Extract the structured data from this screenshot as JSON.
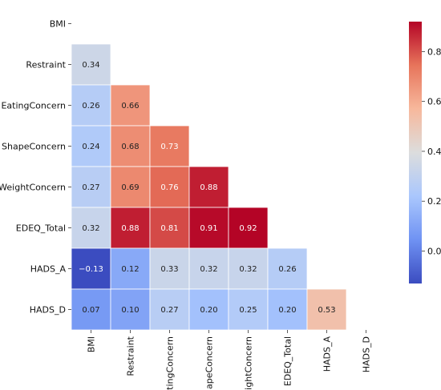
{
  "chart_data": {
    "type": "heatmap",
    "variables": [
      "BMI",
      "Restraint",
      "EatingConcern",
      "ShapeConcern",
      "WeightConcern",
      "EDEQ_Total",
      "HADS_A",
      "HADS_D"
    ],
    "rows": [
      [
        null,
        null,
        null,
        null,
        null,
        null,
        null,
        null
      ],
      [
        0.34,
        null,
        null,
        null,
        null,
        null,
        null,
        null
      ],
      [
        0.26,
        0.66,
        null,
        null,
        null,
        null,
        null,
        null
      ],
      [
        0.24,
        0.68,
        0.73,
        null,
        null,
        null,
        null,
        null
      ],
      [
        0.27,
        0.69,
        0.76,
        0.88,
        null,
        null,
        null,
        null
      ],
      [
        0.32,
        0.88,
        0.81,
        0.91,
        0.92,
        null,
        null,
        null
      ],
      [
        -0.13,
        0.12,
        0.33,
        0.32,
        0.32,
        0.26,
        null,
        null
      ],
      [
        0.07,
        0.1,
        0.27,
        0.2,
        0.25,
        0.2,
        0.53,
        null
      ]
    ],
    "cell_labels": [
      [
        "",
        "",
        "",
        "",
        "",
        "",
        "",
        ""
      ],
      [
        "0.34",
        "",
        "",
        "",
        "",
        "",
        "",
        ""
      ],
      [
        "0.26",
        "0.66",
        "",
        "",
        "",
        "",
        "",
        ""
      ],
      [
        "0.24",
        "0.68",
        "0.73",
        "",
        "",
        "",
        "",
        ""
      ],
      [
        "0.27",
        "0.69",
        "0.76",
        "0.88",
        "",
        "",
        "",
        ""
      ],
      [
        "0.32",
        "0.88",
        "0.81",
        "0.91",
        "0.92",
        "",
        "",
        ""
      ],
      [
        "−0.13",
        "0.12",
        "0.33",
        "0.32",
        "0.32",
        "0.26",
        "",
        ""
      ],
      [
        "0.07",
        "0.10",
        "0.27",
        "0.20",
        "0.25",
        "0.20",
        "0.53",
        ""
      ]
    ],
    "colorbar": {
      "min": -0.13,
      "max": 0.92,
      "ticks": [
        0.0,
        0.2,
        0.4,
        0.6,
        0.8
      ],
      "tick_labels": [
        "0.0",
        "0.2",
        "0.4",
        "0.6",
        "0.8"
      ]
    },
    "colormap": "coolwarm",
    "colormap_stops": [
      "#3b4cc0",
      "#6f92f3",
      "#aac7fd",
      "#dcdddd",
      "#f7b89c",
      "#e7745b",
      "#b40426"
    ],
    "mask": "upper-triangle",
    "title": "",
    "xlabel": "",
    "ylabel": ""
  }
}
